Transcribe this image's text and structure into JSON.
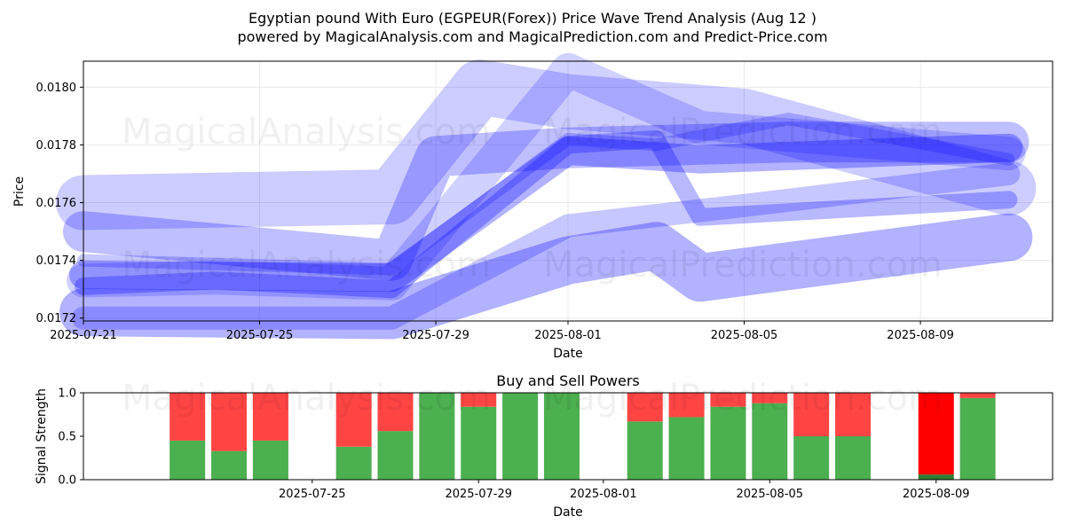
{
  "title_line1": "Egyptian pound With Euro (EGPEUR(Forex)) Price Wave Trend Analysis (Aug 12 )",
  "title_line2": "powered by MagicalAnalysis.com and MagicalPrediction.com and Predict-Price.com",
  "watermarks": [
    "MagicalAnalysis.com",
    "MagicalPrediction.com"
  ],
  "colors": {
    "wave": "#0000ff",
    "buy": "#4caf50",
    "sell": "#ff4444",
    "sell_strong": "#ff0000",
    "buy_dark": "#2e7d32"
  },
  "chart_data": [
    {
      "type": "line",
      "title": "",
      "xlabel": "Date",
      "ylabel": "Price",
      "xlim": [
        "2025-07-21",
        "2025-08-12"
      ],
      "ylim": [
        0.01719,
        0.01809
      ],
      "x_ticks": [
        "2025-07-21",
        "2025-07-25",
        "2025-07-29",
        "2025-08-01",
        "2025-08-05",
        "2025-08-09"
      ],
      "y_ticks": [
        0.0172,
        0.0174,
        0.0176,
        0.0178,
        0.018
      ],
      "y_tick_labels": [
        "0.0172",
        "0.0174",
        "0.0176",
        "0.0178",
        "0.0180"
      ],
      "grid": true,
      "series": [
        {
          "x": [
            "2025-07-21",
            "2025-07-28",
            "2025-08-01",
            "2025-08-03",
            "2025-08-06",
            "2025-08-11"
          ],
          "y": [
            0.0174,
            0.01737,
            0.01782,
            0.0178,
            0.01789,
            0.01775
          ]
        },
        {
          "x": [
            "2025-07-21",
            "2025-07-24",
            "2025-07-28",
            "2025-08-01",
            "2025-08-03",
            "2025-08-04",
            "2025-08-11"
          ],
          "y": [
            0.01731,
            0.01733,
            0.0173,
            0.0178,
            0.01782,
            0.01755,
            0.01761
          ]
        },
        {
          "x": [
            "2025-07-21",
            "2025-07-28",
            "2025-08-01",
            "2025-08-05",
            "2025-08-11"
          ],
          "y": [
            0.0172,
            0.0172,
            0.01752,
            0.01759,
            0.0177
          ]
        },
        {
          "x": [
            "2025-07-21",
            "2025-07-28",
            "2025-08-01",
            "2025-08-04",
            "2025-08-11"
          ],
          "y": [
            0.01735,
            0.01734,
            0.01778,
            0.01775,
            0.01779
          ]
        },
        {
          "x": [
            "2025-07-21",
            "2025-07-24",
            "2025-07-28",
            "2025-08-01",
            "2025-08-04",
            "2025-08-11"
          ],
          "y": [
            0.01733,
            0.01734,
            0.01732,
            0.01806,
            0.01786,
            0.01777
          ]
        },
        {
          "x": [
            "2025-07-21",
            "2025-07-28",
            "2025-07-29",
            "2025-08-01",
            "2025-08-06",
            "2025-08-11"
          ],
          "y": [
            0.0175,
            0.0174,
            0.01776,
            0.01779,
            0.01781,
            0.01781
          ]
        },
        {
          "x": [
            "2025-07-21",
            "2025-07-28",
            "2025-08-01",
            "2025-08-03",
            "2025-08-04",
            "2025-08-11"
          ],
          "y": [
            0.01722,
            0.01721,
            0.0174,
            0.01745,
            0.01734,
            0.01748
          ]
        },
        {
          "x": [
            "2025-07-21",
            "2025-07-28",
            "2025-07-30",
            "2025-08-01",
            "2025-08-05",
            "2025-08-11"
          ],
          "y": [
            0.0176,
            0.01762,
            0.018,
            0.01795,
            0.0179,
            0.01765
          ]
        }
      ]
    },
    {
      "type": "bar",
      "title": "Buy and Sell Powers",
      "xlabel": "Date",
      "ylabel": "Signal Strength",
      "ylim": [
        0,
        1
      ],
      "y_ticks": [
        0,
        0.5,
        1
      ],
      "y_tick_labels": [
        "0.0",
        "0.5",
        "1.0"
      ],
      "x_ticks": [
        "2025-07-25",
        "2025-07-29",
        "2025-08-01",
        "2025-08-05",
        "2025-08-09"
      ],
      "categories": [
        "2025-07-22",
        "2025-07-23",
        "2025-07-24",
        "2025-07-26",
        "2025-07-27",
        "2025-07-28",
        "2025-07-29",
        "2025-07-30",
        "2025-07-31",
        "2025-08-02",
        "2025-08-03",
        "2025-08-04",
        "2025-08-05",
        "2025-08-06",
        "2025-08-07",
        "2025-08-09",
        "2025-08-10"
      ],
      "buy": [
        0.45,
        0.33,
        0.45,
        0.38,
        0.56,
        1.0,
        0.84,
        1.0,
        1.0,
        0.67,
        0.72,
        0.84,
        0.88,
        0.5,
        0.5,
        0.06,
        0.94
      ],
      "sell": [
        0.55,
        0.67,
        0.55,
        0.62,
        0.44,
        0.0,
        0.16,
        0.0,
        0.0,
        0.33,
        0.28,
        0.16,
        0.12,
        0.5,
        0.5,
        0.94,
        0.06
      ]
    }
  ]
}
